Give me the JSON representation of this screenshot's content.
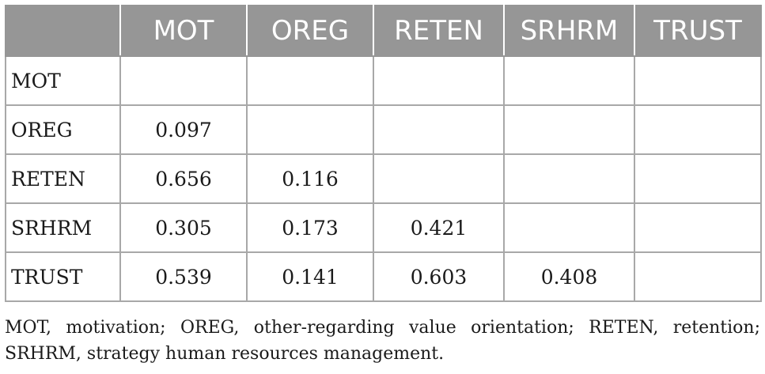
{
  "table": {
    "corner": "",
    "columns": [
      "MOT",
      "OREG",
      "RETEN",
      "SRHRM",
      "TRUST"
    ],
    "rows": [
      {
        "label": "MOT",
        "cells": [
          "",
          "",
          "",
          "",
          ""
        ]
      },
      {
        "label": "OREG",
        "cells": [
          "0.097",
          "",
          "",
          "",
          ""
        ]
      },
      {
        "label": "RETEN",
        "cells": [
          "0.656",
          "0.116",
          "",
          "",
          ""
        ]
      },
      {
        "label": "SRHRM",
        "cells": [
          "0.305",
          "0.173",
          "0.421",
          "",
          ""
        ]
      },
      {
        "label": "TRUST",
        "cells": [
          "0.539",
          "0.141",
          "0.603",
          "0.408",
          ""
        ]
      }
    ],
    "header_bg": "#969696",
    "header_text_color": "#ffffff",
    "border_color": "#a8a8a8"
  },
  "footnote": "MOT, motivation; OREG, other-regarding value orientation; RETEN, retention; SRHRM, strategy human resources management."
}
